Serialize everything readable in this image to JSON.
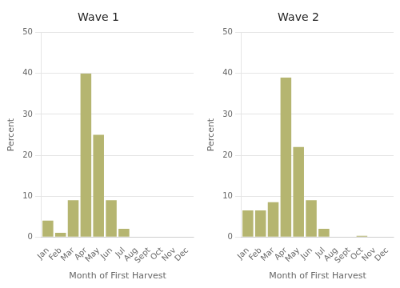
{
  "chart_data": [
    {
      "type": "bar",
      "title": "Wave 1",
      "categories": [
        "Jan",
        "Feb",
        "Mar",
        "Apr",
        "May",
        "Jun",
        "Jul",
        "Aug",
        "Sept",
        "Oct",
        "Nov",
        "Dec"
      ],
      "values": [
        4,
        1,
        9,
        40,
        25,
        9,
        2,
        0,
        0,
        0,
        0,
        0
      ],
      "color": "#b5b570",
      "xlabel": "Month of First Harvest",
      "ylabel": "Percent",
      "ylim": [
        0,
        50
      ],
      "yticks": [
        0,
        10,
        20,
        30,
        40,
        50
      ],
      "grid": true
    },
    {
      "type": "bar",
      "title": "Wave 2",
      "categories": [
        "Jan",
        "Feb",
        "Mar",
        "Apr",
        "May",
        "Jun",
        "Jul",
        "Aug",
        "Sept",
        "Oct",
        "Nov",
        "Dec"
      ],
      "values": [
        6.5,
        6.5,
        8.5,
        39,
        22,
        9,
        2,
        0,
        0,
        0.3,
        0,
        0
      ],
      "color": "#b5b570",
      "xlabel": "Month of First Harvest",
      "ylabel": "Percent",
      "ylim": [
        0,
        50
      ],
      "yticks": [
        0,
        10,
        20,
        30,
        40,
        50
      ],
      "grid": true
    }
  ]
}
